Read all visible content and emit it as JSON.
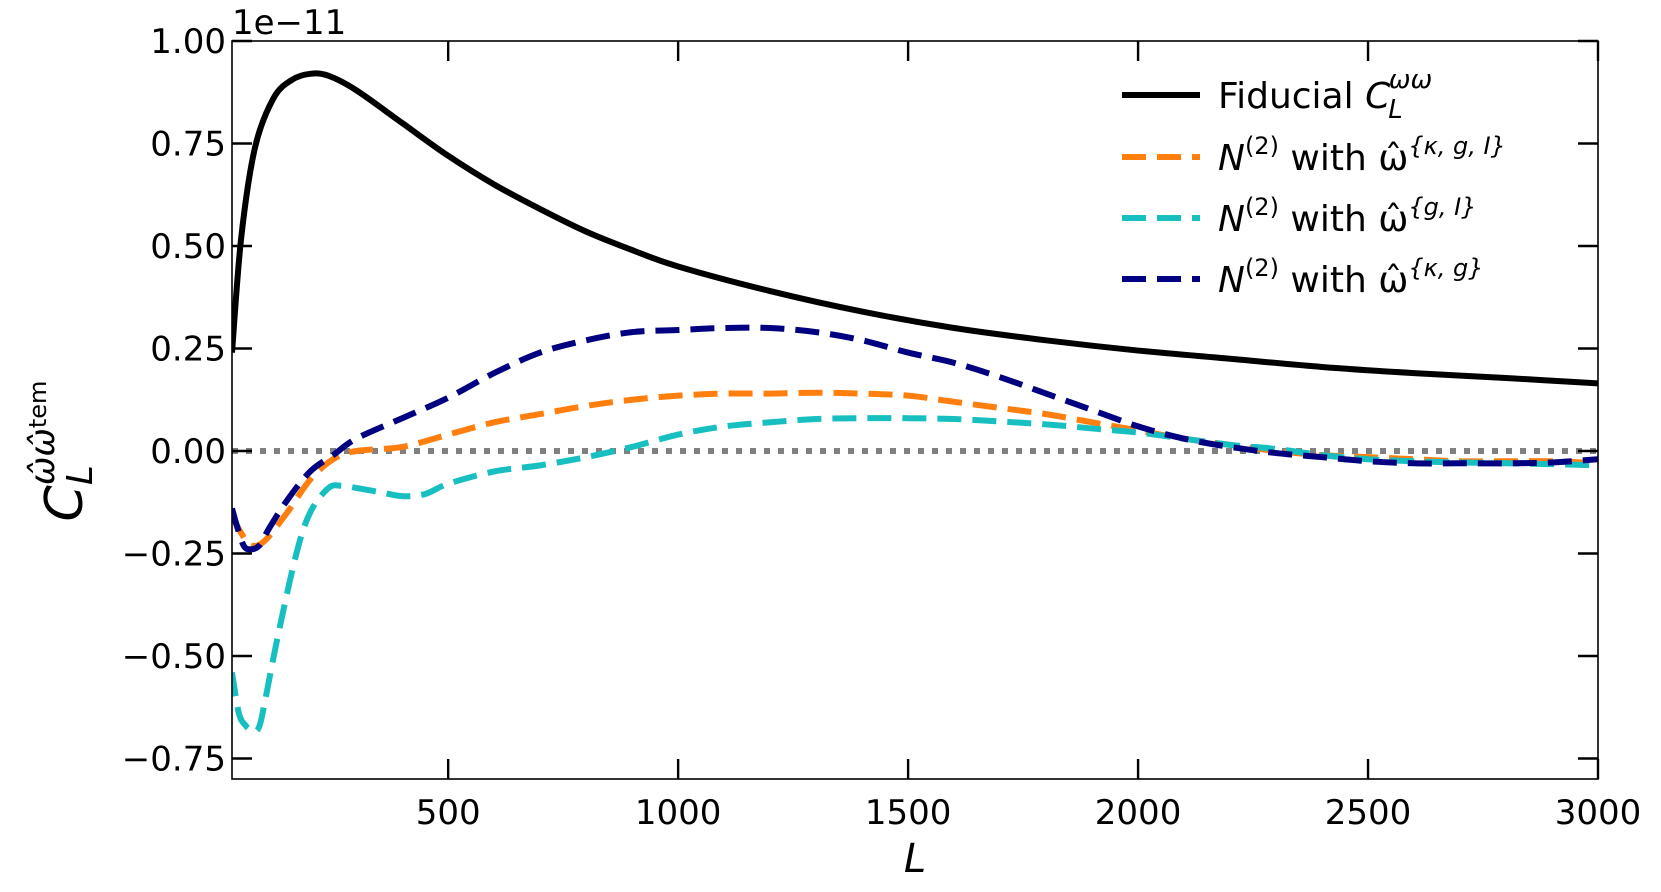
{
  "chart_data": {
    "type": "line",
    "title": "",
    "xlabel": "L",
    "ylabel": {
      "base": "C",
      "sub": "L",
      "sup": "ω̂ω̂",
      "sup_tail": "tem"
    },
    "scale_label": "1e−11",
    "xlim": [
      30,
      3000
    ],
    "ylim": [
      -0.8,
      1.0
    ],
    "xticks": [
      500,
      1000,
      1500,
      2000,
      2500,
      3000
    ],
    "xtick_labels": [
      "500",
      "1000",
      "1500",
      "2000",
      "2500",
      "3000"
    ],
    "yticks": [
      -0.75,
      -0.5,
      -0.25,
      0.0,
      0.25,
      0.5,
      0.75,
      1.0
    ],
    "ytick_labels": [
      "−0.75",
      "−0.50",
      "−0.25",
      "0.00",
      "0.25",
      "0.50",
      "0.75",
      "1.00"
    ],
    "zero_line": {
      "color": "#808080",
      "style": "dotted"
    },
    "series": [
      {
        "name": "Fiducial",
        "legend": {
          "pre": "Fiducial ",
          "var": "C",
          "sub": "L",
          "sup": "ωω"
        },
        "color": "#000000",
        "style": "solid",
        "x": [
          30,
          50,
          80,
          120,
          160,
          200,
          240,
          300,
          400,
          500,
          600,
          700,
          800,
          900,
          1000,
          1200,
          1400,
          1600,
          1800,
          2000,
          2200,
          2400,
          2600,
          2800,
          3000
        ],
        "y": [
          0.24,
          0.52,
          0.74,
          0.86,
          0.905,
          0.92,
          0.915,
          0.88,
          0.8,
          0.72,
          0.65,
          0.59,
          0.535,
          0.49,
          0.45,
          0.39,
          0.34,
          0.3,
          0.27,
          0.245,
          0.225,
          0.205,
          0.19,
          0.178,
          0.165
        ]
      },
      {
        "name": "N(2) with omega-hat {kappa, g, I}",
        "legend": {
          "pre": " ",
          "var": "N",
          "sup": "(2)",
          "mid": " with ",
          "hat": "ω̂",
          "set": "{κ, g, I}"
        },
        "color": "#ff7f0e",
        "style": "dashed",
        "x": [
          30,
          50,
          70,
          100,
          150,
          200,
          250,
          300,
          400,
          500,
          600,
          700,
          800,
          900,
          1000,
          1100,
          1200,
          1300,
          1400,
          1500,
          1600,
          1700,
          1800,
          1900,
          2000,
          2100,
          2200,
          2300,
          2400,
          2500,
          2600,
          2700,
          2800,
          2900,
          3000
        ],
        "y": [
          -0.16,
          -0.2,
          -0.23,
          -0.22,
          -0.15,
          -0.07,
          -0.02,
          0.0,
          0.01,
          0.04,
          0.07,
          0.09,
          0.11,
          0.125,
          0.135,
          0.14,
          0.14,
          0.142,
          0.14,
          0.135,
          0.12,
          0.105,
          0.09,
          0.07,
          0.05,
          0.03,
          0.015,
          0.0,
          -0.01,
          -0.015,
          -0.02,
          -0.025,
          -0.025,
          -0.025,
          -0.03
        ]
      },
      {
        "name": "N(2) with omega-hat {g, I}",
        "legend": {
          "pre": " ",
          "var": "N",
          "sup": "(2)",
          "mid": " with ",
          "hat": "ω̂",
          "set": "{g, I}"
        },
        "color": "#17bfc0",
        "style": "dashed",
        "x": [
          30,
          45,
          60,
          70,
          80,
          90,
          100,
          130,
          170,
          200,
          240,
          270,
          300,
          350,
          400,
          450,
          500,
          600,
          700,
          800,
          900,
          1000,
          1100,
          1200,
          1300,
          1400,
          1500,
          1600,
          1700,
          1800,
          1900,
          2000,
          2100,
          2200,
          2300,
          2400,
          2500,
          2600,
          2700,
          2800,
          2900,
          3000
        ],
        "y": [
          -0.54,
          -0.64,
          -0.67,
          -0.68,
          -0.685,
          -0.67,
          -0.62,
          -0.45,
          -0.25,
          -0.15,
          -0.09,
          -0.085,
          -0.09,
          -0.1,
          -0.11,
          -0.105,
          -0.08,
          -0.05,
          -0.035,
          -0.015,
          0.01,
          0.04,
          0.06,
          0.07,
          0.078,
          0.08,
          0.08,
          0.078,
          0.072,
          0.065,
          0.055,
          0.045,
          0.03,
          0.015,
          0.005,
          -0.01,
          -0.02,
          -0.025,
          -0.028,
          -0.03,
          -0.032,
          -0.035
        ]
      },
      {
        "name": "N(2) with omega-hat {kappa, g}",
        "legend": {
          "pre": " ",
          "var": "N",
          "sup": "(2)",
          "mid": " with ",
          "hat": "ω̂",
          "set": "{κ, g}"
        },
        "color": "#000080",
        "style": "dashed",
        "x": [
          30,
          40,
          55,
          70,
          90,
          110,
          150,
          200,
          250,
          300,
          400,
          500,
          600,
          700,
          800,
          900,
          1000,
          1100,
          1200,
          1300,
          1400,
          1500,
          1600,
          1700,
          1800,
          1900,
          2000,
          2100,
          2200,
          2300,
          2400,
          2500,
          2600,
          2700,
          2800,
          2900,
          3000
        ],
        "y": [
          -0.14,
          -0.18,
          -0.23,
          -0.24,
          -0.23,
          -0.19,
          -0.12,
          -0.05,
          -0.01,
          0.03,
          0.08,
          0.13,
          0.19,
          0.24,
          0.27,
          0.29,
          0.295,
          0.3,
          0.3,
          0.29,
          0.27,
          0.24,
          0.215,
          0.18,
          0.14,
          0.1,
          0.06,
          0.03,
          0.01,
          -0.005,
          -0.015,
          -0.025,
          -0.03,
          -0.03,
          -0.03,
          -0.028,
          -0.02
        ]
      }
    ]
  }
}
